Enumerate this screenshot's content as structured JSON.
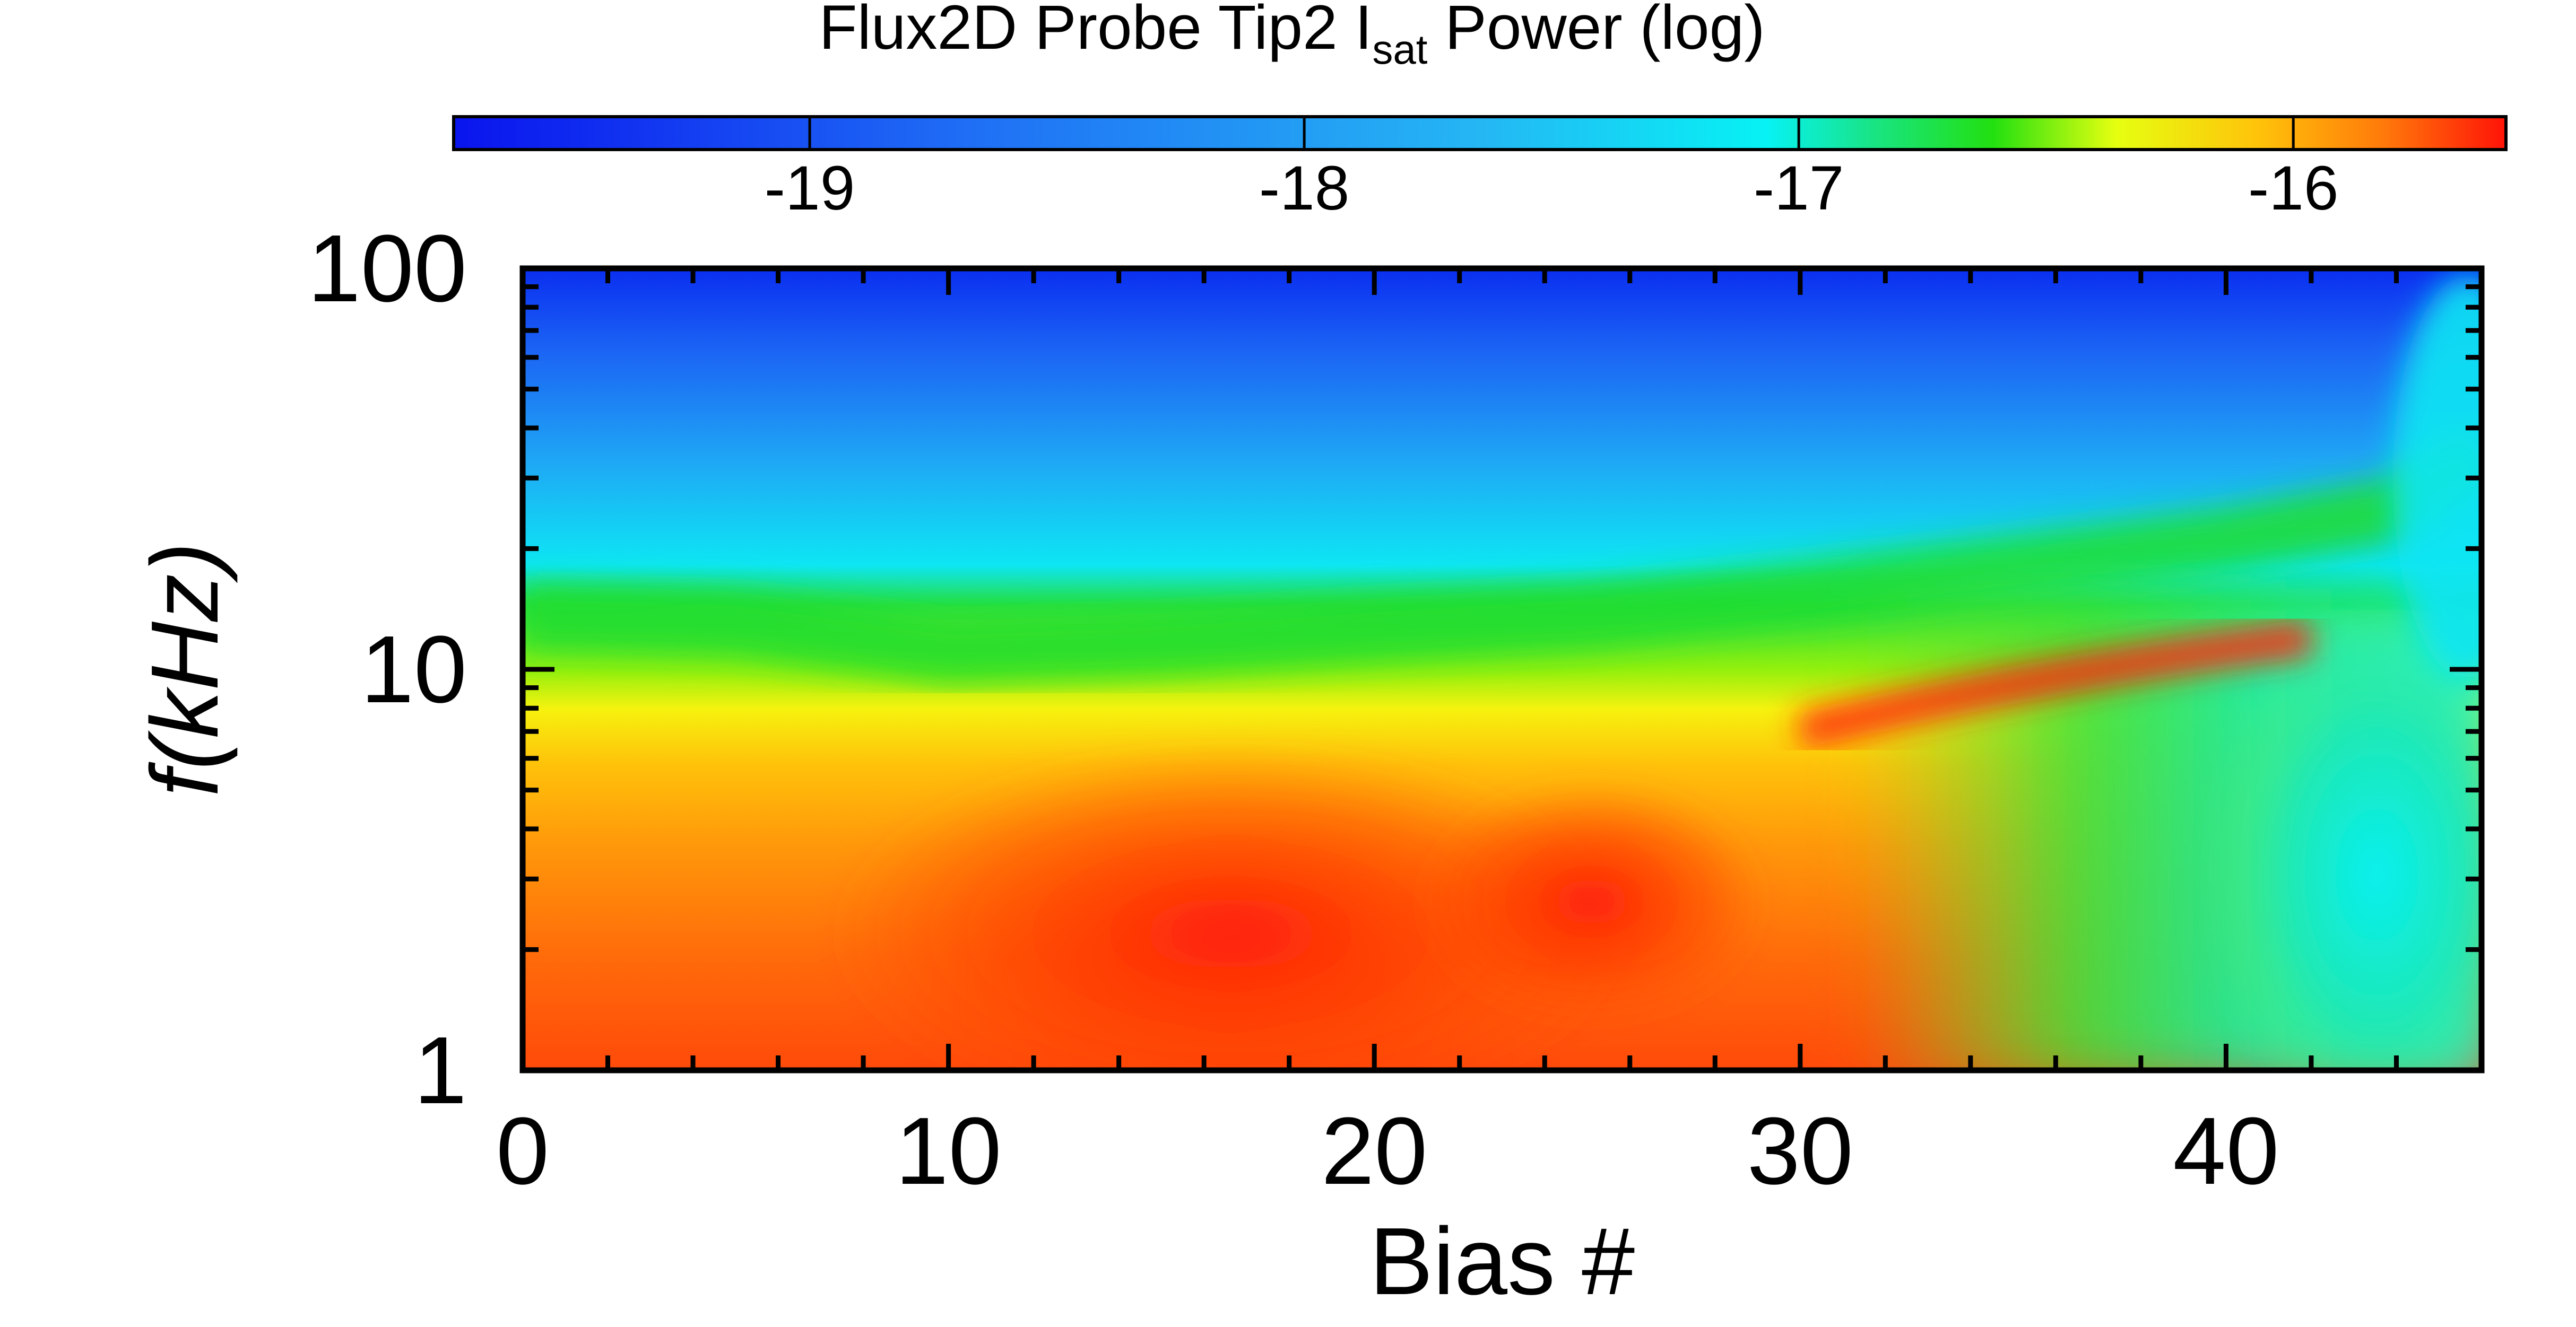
{
  "chart_data": {
    "type": "heatmap",
    "title": "Flux2D Probe Tip2 I",
    "title_subscript": "sat",
    "title_suffix": " Power (log)",
    "xlabel": "Bias #",
    "ylabel": "f(kHz)",
    "x_range": [
      0,
      46
    ],
    "y_range": [
      1,
      100
    ],
    "y_scale": "log",
    "x_ticks": [
      "0",
      "10",
      "20",
      "30",
      "40"
    ],
    "x_tick_values": [
      0,
      10,
      20,
      30,
      40
    ],
    "y_ticks": [
      "1",
      "10",
      "100"
    ],
    "y_tick_values": [
      1,
      10,
      100
    ],
    "colorbar": {
      "range": [
        -19.72,
        -15.57
      ],
      "ticks": [
        "-19",
        "-18",
        "-17",
        "-16"
      ],
      "tick_values": [
        -19,
        -18,
        -17,
        -16
      ],
      "colormap": "rainbow (blue-cyan-green-yellow-red)",
      "placement": "top"
    },
    "ridge_line": {
      "description": "green transition ridge frequency (kHz) vs bias",
      "x": [
        0,
        5,
        10,
        15,
        20,
        25,
        30,
        35,
        40,
        44,
        46
      ],
      "f_kHz": [
        13.5,
        13.0,
        11.0,
        11.5,
        12.5,
        13.5,
        15.5,
        18,
        21,
        25,
        35
      ]
    },
    "peak_region": {
      "description": "strongest power (approx -15.7) at low frequency",
      "x": [
        12,
        26
      ],
      "f_kHz": [
        1,
        3
      ]
    },
    "coherent_mode": {
      "description": "narrow red band rising with bias",
      "x": [
        30,
        42
      ],
      "f_kHz": [
        7,
        12
      ]
    }
  }
}
